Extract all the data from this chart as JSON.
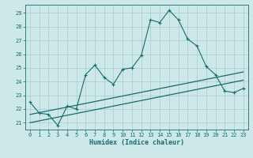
{
  "xlabel": "Humidex (Indice chaleur)",
  "background_color": "#cce8e8",
  "grid_color": "#aacccc",
  "line_color": "#1a6b6b",
  "xlim": [
    -0.5,
    23.5
  ],
  "ylim": [
    20.5,
    29.6
  ],
  "yticks": [
    21,
    22,
    23,
    24,
    25,
    26,
    27,
    28,
    29
  ],
  "xticks": [
    0,
    1,
    2,
    3,
    4,
    5,
    6,
    7,
    8,
    9,
    10,
    11,
    12,
    13,
    14,
    15,
    16,
    17,
    18,
    19,
    20,
    21,
    22,
    23
  ],
  "main_line": {
    "x": [
      0,
      1,
      2,
      3,
      4,
      5,
      6,
      7,
      8,
      9,
      10,
      11,
      12,
      13,
      14,
      15,
      16,
      17,
      18,
      19,
      20,
      21,
      22,
      23
    ],
    "y": [
      22.5,
      21.7,
      21.6,
      20.8,
      22.2,
      22.0,
      24.5,
      25.2,
      24.3,
      23.8,
      24.9,
      25.0,
      25.9,
      28.5,
      28.3,
      29.2,
      28.5,
      27.1,
      26.6,
      25.1,
      24.5,
      23.3,
      23.2,
      23.5
    ]
  },
  "line2": {
    "x": [
      0,
      23
    ],
    "y": [
      21.6,
      24.7
    ]
  },
  "line3": {
    "x": [
      0,
      23
    ],
    "y": [
      21.0,
      24.1
    ]
  }
}
